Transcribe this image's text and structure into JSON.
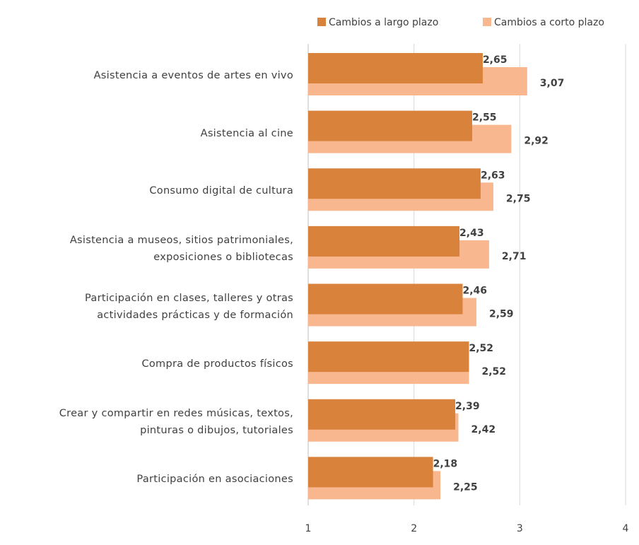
{
  "chart_data": {
    "type": "bar",
    "orientation": "horizontal",
    "categories": [
      "Asistencia a eventos de artes en vivo",
      "Asistencia al cine",
      "Consumo digital de cultura",
      "Asistencia a museos, sitios patrimoniales,\nexposiciones o bibliotecas",
      "Participación en clases, talleres y otras\nactividades prácticas y de formación",
      "Compra de productos físicos",
      "Crear y compartir en redes músicas, textos,\npinturas o dibujos, tutoriales",
      "Participación en asociaciones"
    ],
    "series": [
      {
        "name": "Cambios a largo plazo",
        "color": "#d9823b",
        "label_color": "#843c0c",
        "values": [
          2.65,
          2.55,
          2.63,
          2.43,
          2.46,
          2.52,
          2.39,
          2.18
        ],
        "value_labels": [
          "2,65",
          "2,55",
          "2,63",
          "2,43",
          "2,46",
          "2,52",
          "2,39",
          "2,18"
        ]
      },
      {
        "name": "Cambios a corto plazo",
        "color": "#f8b78e",
        "label_color": "#e97d2b",
        "values": [
          3.07,
          2.92,
          2.75,
          2.71,
          2.59,
          2.52,
          2.42,
          2.25
        ],
        "value_labels": [
          "3,07",
          "2,92",
          "2,75",
          "2,71",
          "2,59",
          "2,52",
          "2,42",
          "2,25"
        ]
      }
    ],
    "xlim": [
      1,
      4
    ],
    "xticks": [
      1,
      2,
      3,
      4
    ],
    "grid": true,
    "legend": "top-right"
  }
}
